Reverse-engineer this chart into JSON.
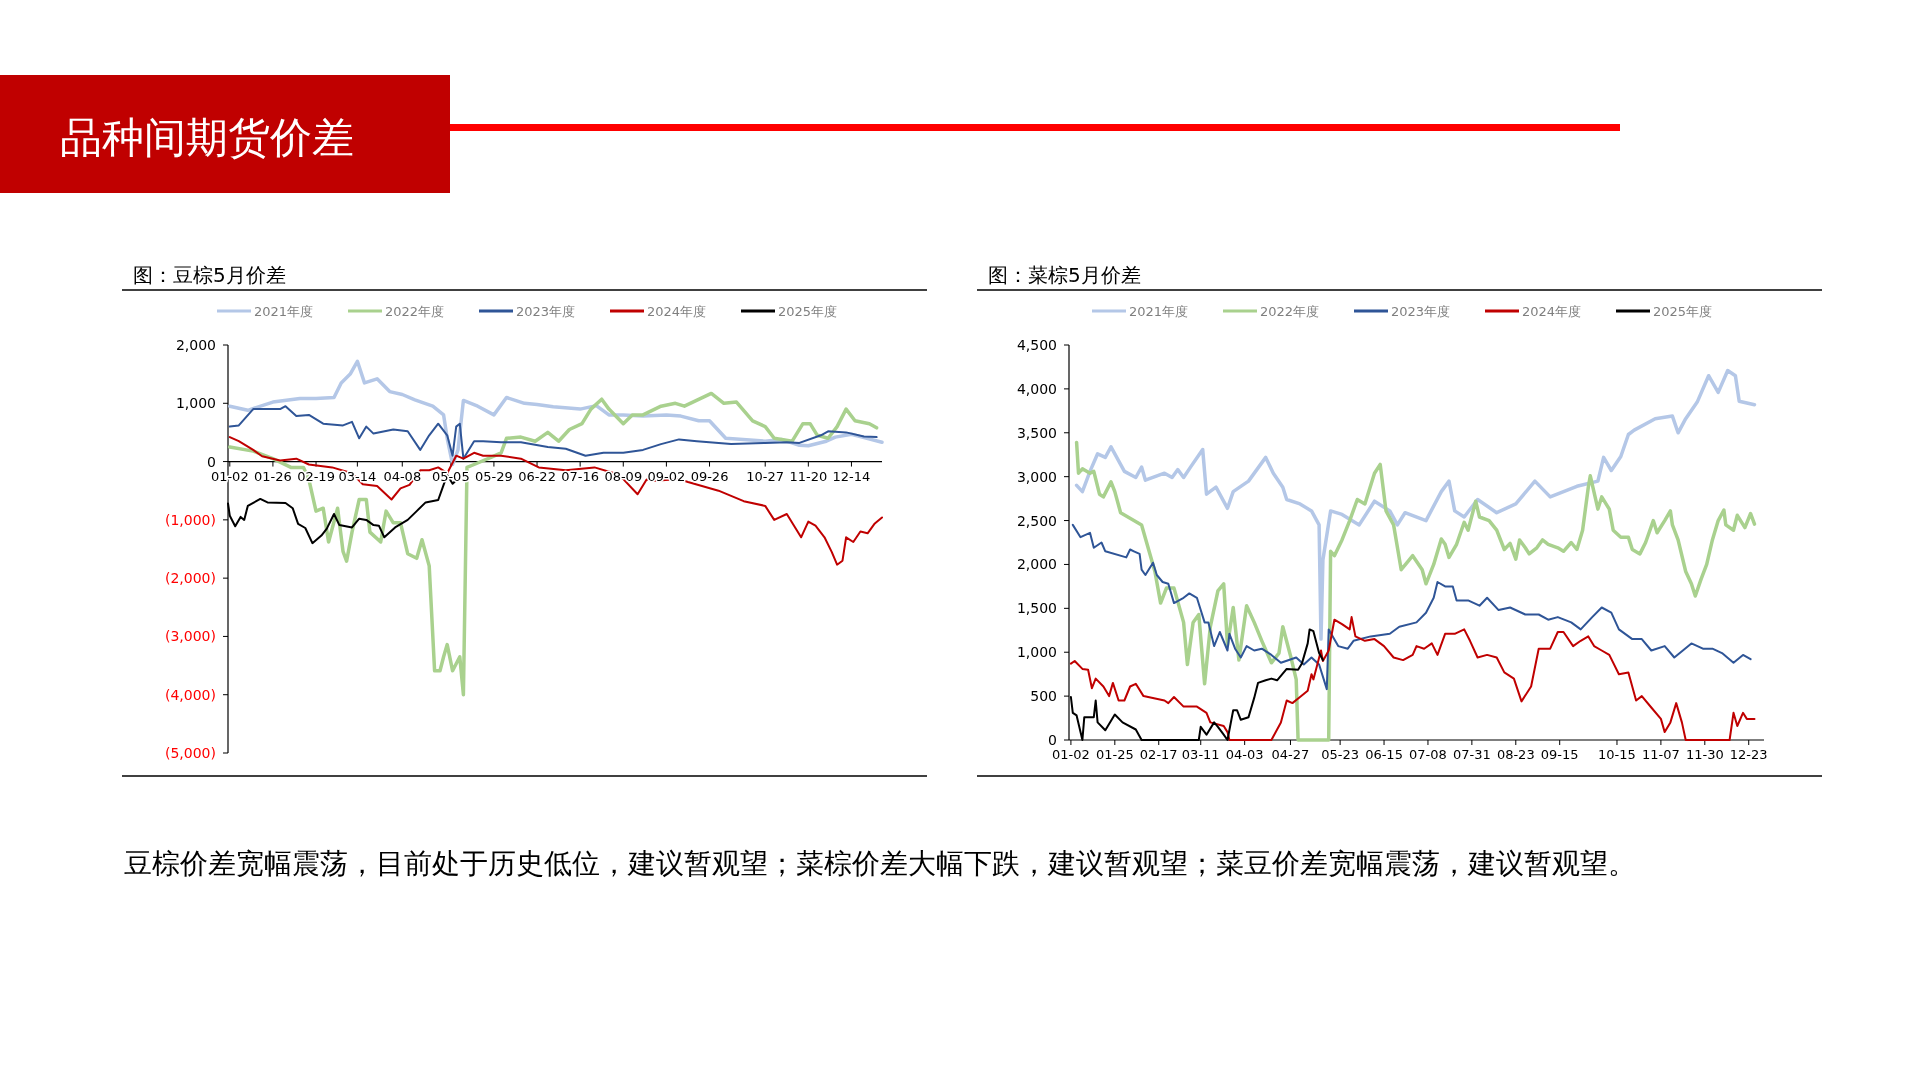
{
  "chart_data": [
    {
      "type": "other",
      "title": "品种间期货价差",
      "annotations": [
        "豆棕价差宽幅震荡，目前处于历史低位，建议暂观望；菜棕价差大幅下跌，建议暂观望；菜豆价差宽幅震荡，建议暂观望。"
      ]
    },
    {
      "type": "line",
      "title": "图：豆棕5月价差",
      "legend": "top",
      "xlim": [
        "--01-01",
        "--12-31"
      ],
      "ylim": [
        -5000,
        2000
      ],
      "xticks": [
        {
          "value": "--01-02",
          "label": "01-02"
        },
        {
          "value": "--01-26",
          "label": "01-26"
        },
        {
          "value": "--02-19",
          "label": "02-19"
        },
        {
          "value": "--03-14",
          "label": "03-14"
        },
        {
          "value": "--04-08",
          "label": "04-08"
        },
        {
          "value": "--05-05",
          "label": "05-05"
        },
        {
          "value": "--05-29",
          "label": "05-29"
        },
        {
          "value": "--06-22",
          "label": "06-22"
        },
        {
          "value": "--07-16",
          "label": "07-16"
        },
        {
          "value": "--08-09",
          "label": "08-09"
        },
        {
          "value": "--09-02",
          "label": "09-02"
        },
        {
          "value": "--09-26",
          "label": "09-26"
        },
        {
          "value": "--10-27",
          "label": "10-27"
        },
        {
          "value": "--11-20",
          "label": "11-20"
        },
        {
          "value": "--12-14",
          "label": "12-14"
        }
      ],
      "yticks": [
        {
          "value": 2000,
          "label": "2,000"
        },
        {
          "value": 1000,
          "label": "1,000"
        },
        {
          "value": 0,
          "label": "0"
        },
        {
          "value": -1000,
          "label": "(1,000)"
        },
        {
          "value": -2000,
          "label": "(2,000)"
        },
        {
          "value": -3000,
          "label": "(3,000)"
        },
        {
          "value": -4000,
          "label": "(4,000)"
        },
        {
          "value": -5000,
          "label": "(5,000)"
        }
      ],
      "series": [
        {
          "name": "2021年度",
          "color": "#b4c7e7",
          "x": [
            "--01-02",
            "--01-12",
            "--01-26",
            "--02-10",
            "--02-19",
            "--03-01",
            "--03-05",
            "--03-10",
            "--03-14",
            "--03-18",
            "--03-25",
            "--04-01",
            "--04-08",
            "--04-15",
            "--04-25",
            "--05-01",
            "--05-03",
            "--05-06",
            "--05-09",
            "--05-12",
            "--05-20",
            "--05-29",
            "--06-05",
            "--06-15",
            "--06-22",
            "--07-01",
            "--07-16",
            "--07-25",
            "--08-01",
            "--08-09",
            "--08-20",
            "--09-02",
            "--09-10",
            "--09-20",
            "--09-26",
            "--10-05",
            "--10-27",
            "--11-05",
            "--11-15",
            "--11-20",
            "--11-30",
            "--12-05",
            "--12-14",
            "--12-20",
            "--12-31"
          ],
          "values": [
            950,
            880,
            1020,
            1080,
            1080,
            1100,
            1350,
            1500,
            1720,
            1350,
            1420,
            1200,
            1150,
            1060,
            950,
            800,
            400,
            -50,
            200,
            1050,
            950,
            800,
            1100,
            1000,
            980,
            940,
            900,
            960,
            800,
            800,
            780,
            800,
            780,
            700,
            700,
            400,
            350,
            380,
            280,
            270,
            350,
            420,
            470,
            420,
            330
          ]
        },
        {
          "name": "2022年度",
          "color": "#a9d18e",
          "x": [
            "--01-02",
            "--01-15",
            "--01-26",
            "--02-05",
            "--02-12",
            "--02-15",
            "--02-19",
            "--02-23",
            "--02-26",
            "--03-03",
            "--03-06",
            "--03-08",
            "--03-11",
            "--03-15",
            "--03-19",
            "--03-21",
            "--03-27",
            "--03-30",
            "--04-03",
            "--04-07",
            "--04-11",
            "--04-16",
            "--04-19",
            "--04-23",
            "--04-26",
            "--04-29",
            "--05-01",
            "--05-03",
            "--05-06",
            "--05-10",
            "--05-12",
            "--05-14",
            "--05-18",
            "--05-28",
            "--06-02",
            "--06-05",
            "--06-13",
            "--06-21",
            "--06-28",
            "--07-04",
            "--07-10",
            "--07-17",
            "--07-22",
            "--07-28",
            "--08-01",
            "--08-09",
            "--08-14",
            "--08-20",
            "--08-30",
            "--09-07",
            "--09-12",
            "--09-27",
            "--10-04",
            "--10-11",
            "--10-20",
            "--10-27",
            "--11-01",
            "--11-11",
            "--11-17",
            "--11-21",
            "--11-25",
            "--12-01",
            "--12-06",
            "--12-11",
            "--12-16",
            "--12-24",
            "--12-28"
          ],
          "values": [
            250,
            180,
            50,
            -100,
            -100,
            -310,
            -850,
            -800,
            -1380,
            -800,
            -1540,
            -1710,
            -1210,
            -650,
            -650,
            -1210,
            -1380,
            -850,
            -1050,
            -1050,
            -1580,
            -1660,
            -1340,
            -1790,
            -3590,
            -3590,
            -3350,
            -3140,
            -3590,
            -3350,
            -4000,
            -100,
            -50,
            80,
            150,
            400,
            420,
            350,
            500,
            350,
            550,
            650,
            900,
            1070,
            900,
            650,
            800,
            800,
            950,
            1000,
            950,
            1170,
            1000,
            1020,
            700,
            600,
            400,
            350,
            650,
            650,
            450,
            400,
            600,
            900,
            700,
            650,
            580
          ]
        },
        {
          "name": "2023年度",
          "color": "#2f5597",
          "x": [
            "--01-02",
            "--01-07",
            "--01-15",
            "--01-30",
            "--02-02",
            "--02-08",
            "--02-15",
            "--02-23",
            "--03-06",
            "--03-11",
            "--03-15",
            "--03-19",
            "--03-23",
            "--04-03",
            "--04-11",
            "--04-18",
            "--04-23",
            "--04-28",
            "--05-03",
            "--05-06",
            "--05-08",
            "--05-10",
            "--05-12",
            "--05-18",
            "--05-23",
            "--06-02",
            "--06-13",
            "--06-28",
            "--07-08",
            "--07-19",
            "--07-29",
            "--08-09",
            "--08-20",
            "--08-30",
            "--09-09",
            "--09-19",
            "--10-08",
            "--10-27",
            "--11-08",
            "--11-15",
            "--11-27",
            "--12-01",
            "--12-11",
            "--12-21",
            "--12-28"
          ],
          "values": [
            600,
            620,
            900,
            900,
            950,
            780,
            800,
            650,
            620,
            680,
            400,
            600,
            480,
            550,
            520,
            200,
            450,
            650,
            450,
            100,
            600,
            650,
            50,
            350,
            350,
            330,
            330,
            250,
            220,
            100,
            150,
            150,
            200,
            300,
            380,
            350,
            300,
            320,
            330,
            320,
            450,
            520,
            500,
            430,
            420
          ]
        },
        {
          "name": "2024年度",
          "color": "#c00000",
          "x": [
            "--01-02",
            "--01-07",
            "--01-15",
            "--01-20",
            "--01-30",
            "--02-08",
            "--02-15",
            "--02-28",
            "--03-11",
            "--03-17",
            "--03-25",
            "--04-02",
            "--04-07",
            "--04-12",
            "--04-18",
            "--04-23",
            "--04-28",
            "--05-03",
            "--05-08",
            "--05-12",
            "--05-18",
            "--05-23",
            "--06-02",
            "--06-13",
            "--06-23",
            "--07-08",
            "--07-24",
            "--08-04",
            "--08-09",
            "--08-17",
            "--08-22",
            "--08-27",
            "--09-09",
            "--09-14",
            "--10-01",
            "--10-15",
            "--10-27",
            "--11-01",
            "--11-08",
            "--11-16",
            "--11-20",
            "--11-24",
            "--11-29",
            "--12-03",
            "--12-06",
            "--12-09",
            "--12-11",
            "--12-15",
            "--12-19",
            "--12-23",
            "--12-27",
            "--12-31"
          ],
          "values": [
            420,
            350,
            200,
            90,
            20,
            50,
            -50,
            -100,
            -200,
            -390,
            -420,
            -650,
            -460,
            -400,
            -150,
            -150,
            -100,
            -200,
            100,
            50,
            150,
            100,
            100,
            50,
            -100,
            -150,
            -100,
            -200,
            -300,
            -560,
            -310,
            -330,
            -300,
            -350,
            -500,
            -680,
            -760,
            -1000,
            -900,
            -1300,
            -1030,
            -1100,
            -1300,
            -1550,
            -1770,
            -1700,
            -1300,
            -1380,
            -1200,
            -1230,
            -1060,
            -960
          ]
        },
        {
          "name": "2025年度",
          "color": "#000000",
          "x": [
            "--01-01",
            "--01-02",
            "--01-05",
            "--01-08",
            "--01-10",
            "--01-12",
            "--01-19",
            "--01-23",
            "--02-02",
            "--02-06",
            "--02-09",
            "--02-13",
            "--02-17",
            "--02-22",
            "--02-25",
            "--03-01",
            "--03-04",
            "--03-11",
            "--03-15",
            "--03-19",
            "--03-23",
            "--03-26",
            "--03-29",
            "--04-04",
            "--04-11",
            "--04-16",
            "--04-21",
            "--04-28",
            "--05-01",
            "--05-03",
            "--05-06",
            "--05-08"
          ],
          "values": [
            -720,
            -930,
            -1110,
            -950,
            -1000,
            -760,
            -640,
            -700,
            -710,
            -800,
            -1070,
            -1140,
            -1400,
            -1270,
            -1150,
            -900,
            -1090,
            -1130,
            -980,
            -1000,
            -1090,
            -1100,
            -1300,
            -1130,
            -1000,
            -850,
            -700,
            -660,
            -400,
            -230,
            -380,
            -320
          ]
        }
      ]
    },
    {
      "type": "line",
      "title": "图：菜棕5月价差",
      "legend": "top",
      "xlim": [
        "--01-01",
        "--12-31"
      ],
      "ylim": [
        0,
        4500
      ],
      "xticks": [
        {
          "value": "--01-02",
          "label": "01-02"
        },
        {
          "value": "--01-25",
          "label": "01-25"
        },
        {
          "value": "--02-17",
          "label": "02-17"
        },
        {
          "value": "--03-11",
          "label": "03-11"
        },
        {
          "value": "--04-03",
          "label": "04-03"
        },
        {
          "value": "--04-27",
          "label": "04-27"
        },
        {
          "value": "--05-23",
          "label": "05-23"
        },
        {
          "value": "--06-15",
          "label": "06-15"
        },
        {
          "value": "--07-08",
          "label": "07-08"
        },
        {
          "value": "--07-31",
          "label": "07-31"
        },
        {
          "value": "--08-23",
          "label": "08-23"
        },
        {
          "value": "--09-15",
          "label": "09-15"
        },
        {
          "value": "--10-15",
          "label": "10-15"
        },
        {
          "value": "--11-07",
          "label": "11-07"
        },
        {
          "value": "--11-30",
          "label": "11-30"
        },
        {
          "value": "--12-23",
          "label": "12-23"
        }
      ],
      "yticks": [
        {
          "value": 0,
          "label": "0"
        },
        {
          "value": 500,
          "label": "500"
        },
        {
          "value": 1000,
          "label": "1,000"
        },
        {
          "value": 1500,
          "label": "1,500"
        },
        {
          "value": 2000,
          "label": "2,000"
        },
        {
          "value": 2500,
          "label": "2,500"
        },
        {
          "value": 3000,
          "label": "3,000"
        },
        {
          "value": 3500,
          "label": "3,500"
        },
        {
          "value": 4000,
          "label": "4,000"
        },
        {
          "value": 4500,
          "label": "4,500"
        }
      ],
      "series": [
        {
          "name": "2021年度",
          "color": "#b4c7e7",
          "x": [
            "--01-05",
            "--01-08",
            "--01-12",
            "--01-16",
            "--01-20",
            "--01-23",
            "--01-30",
            "--02-05",
            "--02-08",
            "--02-10",
            "--02-20",
            "--02-24",
            "--02-27",
            "--03-02",
            "--03-06",
            "--03-12",
            "--03-14",
            "--03-19",
            "--03-25",
            "--03-28",
            "--04-05",
            "--04-14",
            "--04-18",
            "--04-23",
            "--04-25",
            "--05-02",
            "--05-08",
            "--05-12",
            "--05-13",
            "--05-14",
            "--05-18",
            "--05-24",
            "--06-02",
            "--06-10",
            "--06-18",
            "--06-22",
            "--06-26",
            "--07-07",
            "--07-15",
            "--07-19",
            "--07-22",
            "--07-27",
            "--08-03",
            "--08-13",
            "--08-23",
            "--09-02",
            "--09-10",
            "--09-24",
            "--10-05",
            "--10-08",
            "--10-12",
            "--10-17",
            "--10-21",
            "--10-24",
            "--11-04",
            "--11-13",
            "--11-16",
            "--11-20",
            "--11-26",
            "--12-02",
            "--12-07",
            "--12-12",
            "--12-16",
            "--12-18",
            "--12-26"
          ],
          "values": [
            2900,
            2830,
            3060,
            3260,
            3220,
            3340,
            3060,
            2990,
            3110,
            2960,
            3040,
            2990,
            3080,
            2990,
            3120,
            3310,
            2800,
            2880,
            2640,
            2830,
            2950,
            3220,
            3040,
            2880,
            2740,
            2690,
            2610,
            2450,
            1150,
            2050,
            2610,
            2570,
            2450,
            2720,
            2610,
            2450,
            2590,
            2500,
            2830,
            2950,
            2610,
            2540,
            2740,
            2590,
            2690,
            2950,
            2770,
            2890,
            2950,
            3220,
            3070,
            3230,
            3480,
            3530,
            3660,
            3690,
            3500,
            3660,
            3850,
            4150,
            3960,
            4210,
            4150,
            3860,
            3820
          ]
        },
        {
          "name": "2022年度",
          "color": "#a9d18e",
          "x": [
            "--01-05",
            "--01-06",
            "--01-08",
            "--01-12",
            "--01-14",
            "--01-17",
            "--01-19",
            "--01-23",
            "--01-25",
            "--01-28",
            "--02-08",
            "--02-15",
            "--02-18",
            "--02-21",
            "--02-25",
            "--03-02",
            "--03-04",
            "--03-07",
            "--03-10",
            "--03-13",
            "--03-16",
            "--03-20",
            "--03-23",
            "--03-25",
            "--03-28",
            "--03-31",
            "--04-04",
            "--04-08",
            "--04-12",
            "--04-17",
            "--04-21",
            "--04-23",
            "--04-27",
            "--04-30",
            "--05-01",
            "--05-17",
            "--05-18",
            "--05-20",
            "--05-24",
            "--05-28",
            "--06-01",
            "--06-05",
            "--06-10",
            "--06-13",
            "--06-16",
            "--06-20",
            "--06-24",
            "--06-27",
            "--06-30",
            "--07-05",
            "--07-07",
            "--07-11",
            "--07-15",
            "--07-17",
            "--07-19",
            "--07-23",
            "--07-27",
            "--07-29",
            "--08-02",
            "--08-04",
            "--08-09",
            "--08-13",
            "--08-17",
            "--08-20",
            "--08-23",
            "--08-25",
            "--08-28",
            "--08-30",
            "--09-03",
            "--09-06",
            "--09-09",
            "--09-14",
            "--09-17",
            "--09-21",
            "--09-24",
            "--09-27",
            "--09-30",
            "--10-01",
            "--10-05",
            "--10-07",
            "--10-11",
            "--10-13",
            "--10-17",
            "--10-21",
            "--10-23",
            "--10-27",
            "--10-30",
            "--11-03",
            "--11-05",
            "--11-09",
            "--11-12",
            "--11-13",
            "--11-16",
            "--11-20",
            "--11-23",
            "--11-25",
            "--11-28",
            "--12-01",
            "--12-04",
            "--12-07",
            "--12-10",
            "--12-11",
            "--12-15",
            "--12-17",
            "--12-21",
            "--12-24",
            "--12-26"
          ],
          "values": [
            3390,
            3040,
            3090,
            3040,
            3060,
            2800,
            2770,
            2940,
            2830,
            2590,
            2450,
            1920,
            1560,
            1730,
            1730,
            1340,
            860,
            1340,
            1430,
            640,
            1290,
            1700,
            1780,
            1080,
            1510,
            910,
            1530,
            1340,
            1130,
            880,
            990,
            1290,
            960,
            690,
            0,
            0,
            2150,
            2100,
            2280,
            2500,
            2740,
            2690,
            3040,
            3140,
            2610,
            2450,
            1940,
            2020,
            2100,
            1940,
            1780,
            2000,
            2290,
            2230,
            2080,
            2230,
            2480,
            2390,
            2720,
            2540,
            2500,
            2390,
            2170,
            2240,
            2060,
            2280,
            2190,
            2120,
            2190,
            2280,
            2230,
            2190,
            2150,
            2250,
            2170,
            2390,
            2880,
            3010,
            2630,
            2770,
            2630,
            2390,
            2310,
            2310,
            2170,
            2120,
            2250,
            2500,
            2360,
            2500,
            2610,
            2450,
            2280,
            1920,
            1780,
            1640,
            1830,
            2000,
            2280,
            2500,
            2620,
            2450,
            2390,
            2560,
            2420,
            2580,
            2460
          ]
        },
        {
          "name": "2023年度",
          "color": "#2f5597",
          "x": [
            "--01-03",
            "--01-07",
            "--01-12",
            "--01-14",
            "--01-18",
            "--01-20",
            "--01-31",
            "--02-02",
            "--02-04",
            "--02-07",
            "--02-08",
            "--02-10",
            "--02-14",
            "--02-16",
            "--02-19",
            "--02-22",
            "--02-25",
            "--03-02",
            "--03-05",
            "--03-09",
            "--03-13",
            "--03-15",
            "--03-18",
            "--03-21",
            "--03-25",
            "--03-26",
            "--03-29",
            "--04-01",
            "--04-04",
            "--04-08",
            "--04-12",
            "--04-17",
            "--04-22",
            "--04-30",
            "--05-04",
            "--05-08",
            "--05-12",
            "--05-16",
            "--05-17",
            "--05-22",
            "--05-27",
            "--05-30",
            "--06-08",
            "--06-18",
            "--06-23",
            "--07-02",
            "--07-07",
            "--07-11",
            "--07-13",
            "--07-17",
            "--07-21",
            "--07-23",
            "--07-29",
            "--08-04",
            "--08-08",
            "--08-14",
            "--08-20",
            "--08-28",
            "--09-04",
            "--09-09",
            "--09-14",
            "--09-21",
            "--09-26",
            "--10-02",
            "--10-07",
            "--10-12",
            "--10-16",
            "--10-23",
            "--10-28",
            "--11-02",
            "--11-09",
            "--11-14",
            "--11-23",
            "--11-29",
            "--12-04",
            "--12-09",
            "--12-15",
            "--12-20",
            "--12-24"
          ],
          "values": [
            2450,
            2310,
            2360,
            2190,
            2250,
            2150,
            2080,
            2170,
            2150,
            2120,
            1940,
            1880,
            2020,
            1880,
            1800,
            1780,
            1560,
            1620,
            1670,
            1620,
            1340,
            1340,
            1070,
            1230,
            1020,
            1210,
            1040,
            940,
            1070,
            1020,
            1040,
            970,
            880,
            940,
            860,
            940,
            860,
            580,
            1260,
            1070,
            1040,
            1130,
            1180,
            1210,
            1290,
            1340,
            1450,
            1620,
            1800,
            1750,
            1750,
            1590,
            1590,
            1530,
            1620,
            1480,
            1510,
            1430,
            1430,
            1370,
            1400,
            1340,
            1260,
            1400,
            1510,
            1450,
            1260,
            1150,
            1150,
            1020,
            1070,
            940,
            1100,
            1040,
            1040,
            990,
            880,
            970,
            920
          ]
        },
        {
          "name": "2024年度",
          "color": "#c00000",
          "x": [
            "--01-02",
            "--01-04",
            "--01-08",
            "--01-11",
            "--01-13",
            "--01-15",
            "--01-19",
            "--01-22",
            "--01-24",
            "--01-27",
            "--01-30",
            "--02-02",
            "--02-05",
            "--02-09",
            "--02-20",
            "--02-22",
            "--02-25",
            "--03-02",
            "--03-09",
            "--03-14",
            "--03-16",
            "--03-23",
            "--03-25",
            "--03-26",
            "--04-17",
            "--04-22",
            "--04-25",
            "--04-28",
            "--05-02",
            "--05-06",
            "--05-08",
            "--05-09",
            "--05-13",
            "--05-14",
            "--05-17",
            "--05-20",
            "--05-24",
            "--05-28",
            "--05-29",
            "--05-31",
            "--06-05",
            "--06-10",
            "--06-15",
            "--06-20",
            "--06-25",
            "--06-30",
            "--07-02",
            "--07-06",
            "--07-10",
            "--07-13",
            "--07-17",
            "--07-22",
            "--07-27",
            "--07-30",
            "--08-03",
            "--08-08",
            "--08-13",
            "--08-17",
            "--08-22",
            "--08-26",
            "--08-31",
            "--09-04",
            "--09-10",
            "--09-14",
            "--09-17",
            "--09-22",
            "--09-26",
            "--09-30",
            "--10-03",
            "--10-07",
            "--10-11",
            "--10-16",
            "--10-21",
            "--10-25",
            "--10-28",
            "--11-02",
            "--11-07",
            "--11-09",
            "--11-12",
            "--11-15",
            "--11-18",
            "--11-20",
            "--12-13",
            "--12-15",
            "--12-17",
            "--12-20",
            "--12-22",
            "--12-26"
          ],
          "values": [
            870,
            900,
            810,
            800,
            590,
            700,
            610,
            500,
            650,
            450,
            450,
            610,
            640,
            500,
            450,
            420,
            490,
            380,
            380,
            310,
            200,
            160,
            90,
            0,
            0,
            200,
            450,
            420,
            490,
            560,
            750,
            690,
            1020,
            900,
            1020,
            1370,
            1320,
            1260,
            1400,
            1180,
            1130,
            1150,
            1070,
            940,
            910,
            970,
            1070,
            1040,
            1100,
            970,
            1210,
            1210,
            1260,
            1130,
            940,
            970,
            940,
            770,
            700,
            440,
            610,
            1040,
            1040,
            1230,
            1230,
            1070,
            1130,
            1180,
            1070,
            1020,
            970,
            750,
            770,
            450,
            500,
            370,
            240,
            90,
            200,
            420,
            200,
            0,
            0,
            310,
            160,
            310,
            240,
            240
          ]
        },
        {
          "name": "2025年度",
          "color": "#000000",
          "x": [
            "--01-02",
            "--01-03",
            "--01-05",
            "--01-08",
            "--01-09",
            "--01-14",
            "--01-15",
            "--01-16",
            "--01-20",
            "--01-25",
            "--01-29",
            "--02-05",
            "--02-08",
            "--03-10",
            "--03-11",
            "--03-14",
            "--03-18",
            "--03-20",
            "--03-23",
            "--03-25",
            "--03-28",
            "--03-30",
            "--04-01",
            "--04-05",
            "--04-08",
            "--04-10",
            "--04-14",
            "--04-17",
            "--04-20",
            "--04-25",
            "--05-01",
            "--05-03",
            "--05-06",
            "--05-07",
            "--05-09",
            "--05-12",
            "--05-14"
          ],
          "values": [
            490,
            310,
            280,
            0,
            260,
            260,
            450,
            200,
            110,
            290,
            200,
            120,
            0,
            0,
            150,
            60,
            200,
            150,
            60,
            0,
            340,
            340,
            230,
            260,
            480,
            650,
            680,
            700,
            680,
            810,
            800,
            870,
            1100,
            1260,
            1240,
            990,
            910
          ]
        }
      ]
    }
  ]
}
